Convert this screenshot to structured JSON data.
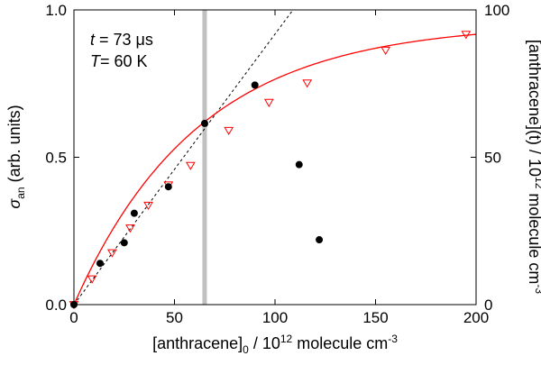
{
  "chart_data": {
    "type": "scatter",
    "xlim": [
      0,
      200
    ],
    "ylim_left": [
      0,
      1.0
    ],
    "ylim_right": [
      0,
      100
    ],
    "x_ticks": [
      0,
      50,
      100,
      150,
      200
    ],
    "x_tick_labels": [
      "0",
      "50",
      "100",
      "150",
      "200"
    ],
    "y_left_ticks": [
      0,
      0.5,
      1.0
    ],
    "y_left_tick_labels": [
      "0.0",
      "0.5",
      "1.0"
    ],
    "y_right_ticks": [
      0,
      50,
      100
    ],
    "y_right_tick_labels": [
      "0",
      "50",
      "100"
    ],
    "xlabel": {
      "pre": "[anthracene]",
      "sub": "0",
      "post": " / 10",
      "sup": "12",
      "tail": " molecule cm",
      "sup2": "-3"
    },
    "ylabel_left": {
      "sym": "σ",
      "sub": "an",
      "post": " (arb. units)"
    },
    "ylabel_right": {
      "pre": "[anthracene](t) / 10",
      "sup": "12",
      "post": " molecule cm",
      "sup2": "-3"
    },
    "annotations": {
      "t": {
        "var": "t",
        "value": " = 73 μs"
      },
      "T": {
        "var": "T",
        "value": "= 60 K"
      }
    },
    "vertical_line_x": 65,
    "series": [
      {
        "name": "sigma_an",
        "marker": "filled-circle",
        "axis": "left",
        "color": "#000000",
        "points": [
          [
            0,
            0.0
          ],
          [
            13,
            0.14
          ],
          [
            25,
            0.21
          ],
          [
            30,
            0.31
          ],
          [
            47,
            0.4
          ],
          [
            65,
            0.615
          ],
          [
            90,
            0.745
          ],
          [
            112,
            0.475
          ],
          [
            122,
            0.22
          ]
        ]
      },
      {
        "name": "anthracene_t",
        "marker": "open-triangle-down",
        "axis": "right",
        "color": "#ff0000",
        "points": [
          [
            0,
            0
          ],
          [
            9,
            8.7
          ],
          [
            19,
            17.6
          ],
          [
            28,
            26
          ],
          [
            37,
            33.7
          ],
          [
            47,
            40.6
          ],
          [
            58,
            47.2
          ],
          [
            77,
            59.1
          ],
          [
            97,
            68.6
          ],
          [
            116,
            75.2
          ],
          [
            155,
            86.3
          ],
          [
            195,
            91.7
          ]
        ]
      },
      {
        "name": "fit",
        "style": "solid-line",
        "axis": "right",
        "color": "#ff0000",
        "model": "exponential-saturation",
        "amplitude": 95.5,
        "scale": 62
      },
      {
        "name": "linear",
        "style": "dashed-line",
        "axis": "left",
        "color": "#000000",
        "slope": 0.00918
      }
    ]
  }
}
